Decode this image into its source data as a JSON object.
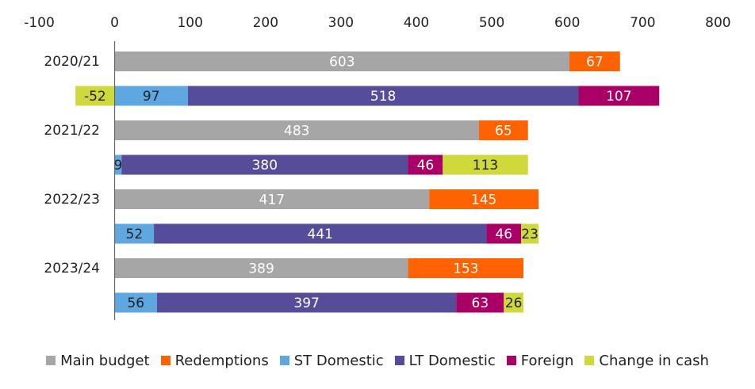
{
  "chart_data": {
    "type": "bar",
    "orientation": "horizontal",
    "stacked": true,
    "xlim": [
      -100,
      800
    ],
    "xticks": [
      -100,
      0,
      100,
      200,
      300,
      400,
      500,
      600,
      700,
      800
    ],
    "grid": false,
    "legend_position": "bottom",
    "categories": [
      "2020/21",
      "",
      "2021/22",
      "",
      "2022/23",
      "",
      "2023/24",
      ""
    ],
    "series": [
      {
        "name": "Main budget",
        "color": "#a6a6a6",
        "label_color": "#ffffff",
        "values": [
          603,
          null,
          483,
          null,
          417,
          null,
          389,
          null
        ]
      },
      {
        "name": "Redemptions",
        "color": "#ff6200",
        "label_color": "#ffffff",
        "values": [
          67,
          null,
          65,
          null,
          145,
          null,
          153,
          null
        ]
      },
      {
        "name": "ST Domestic",
        "color": "#5fa7e0",
        "label_color": "#222222",
        "values": [
          null,
          97,
          null,
          9,
          null,
          52,
          null,
          56
        ]
      },
      {
        "name": "LT Domestic",
        "color": "#554d9a",
        "label_color": "#ffffff",
        "values": [
          null,
          518,
          null,
          380,
          null,
          441,
          null,
          397
        ]
      },
      {
        "name": "Foreign",
        "color": "#aa0066",
        "label_color": "#ffffff",
        "values": [
          null,
          107,
          null,
          46,
          null,
          46,
          null,
          63
        ]
      },
      {
        "name": "Change in cash",
        "color": "#d0d93c",
        "label_color": "#222222",
        "values": [
          null,
          -52,
          null,
          113,
          null,
          23,
          null,
          26
        ]
      }
    ],
    "labels": [
      [
        "603",
        null,
        "483",
        null,
        "417",
        null,
        "389",
        null
      ],
      [
        "67",
        null,
        "65",
        null,
        "145",
        null,
        "153",
        null
      ],
      [
        null,
        "97",
        null,
        "9",
        null,
        "52",
        null,
        "56"
      ],
      [
        null,
        "518",
        null,
        "380",
        null,
        "441",
        null,
        "397"
      ],
      [
        null,
        "107",
        null,
        "46",
        null,
        "46",
        null,
        "63"
      ],
      [
        null,
        "-52",
        null,
        "113",
        null,
        "23",
        null,
        "26"
      ]
    ]
  }
}
